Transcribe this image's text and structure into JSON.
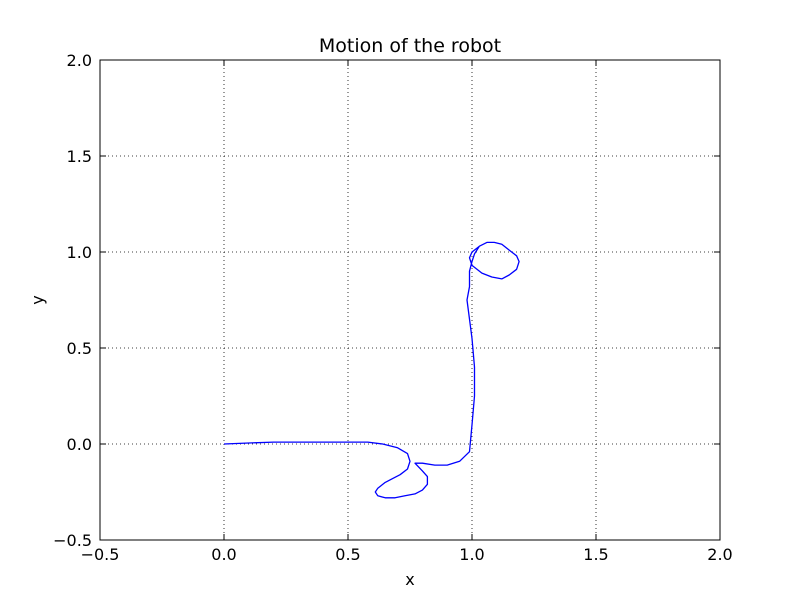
{
  "chart_data": {
    "type": "line",
    "title": "Motion of the robot",
    "xlabel": "x",
    "ylabel": "y",
    "xlim": [
      -0.5,
      2.0
    ],
    "ylim": [
      -0.5,
      2.0
    ],
    "xticks": [
      -0.5,
      0.0,
      0.5,
      1.0,
      1.5,
      2.0
    ],
    "yticks": [
      -0.5,
      0.0,
      0.5,
      1.0,
      1.5,
      2.0
    ],
    "xtick_labels": [
      "−0.5",
      "0.0",
      "0.5",
      "1.0",
      "1.5",
      "2.0"
    ],
    "ytick_labels": [
      "−0.5",
      "0.0",
      "0.5",
      "1.0",
      "1.5",
      "2.0"
    ],
    "grid": true,
    "grid_style": "dotted",
    "line_color": "#0000ff",
    "series": [
      {
        "x": [
          0.0,
          0.1,
          0.2,
          0.3,
          0.4,
          0.5,
          0.58,
          0.64,
          0.7,
          0.74,
          0.75,
          0.74,
          0.71,
          0.68,
          0.65,
          0.62,
          0.61,
          0.62,
          0.65,
          0.69,
          0.73,
          0.77,
          0.8,
          0.82,
          0.82,
          0.8,
          0.77,
          0.8,
          0.85,
          0.9,
          0.95,
          0.99,
          1.0,
          1.01,
          1.01,
          1.0,
          0.99,
          0.98,
          0.99,
          0.99,
          0.99,
          1.0,
          1.01,
          1.03,
          1.06,
          1.09,
          1.12,
          1.15,
          1.18,
          1.19,
          1.18,
          1.15,
          1.12,
          1.08,
          1.04,
          1.0,
          0.99,
          1.0,
          1.03
        ],
        "y": [
          0.0,
          0.005,
          0.01,
          0.01,
          0.01,
          0.01,
          0.01,
          0.0,
          -0.02,
          -0.05,
          -0.09,
          -0.13,
          -0.16,
          -0.18,
          -0.2,
          -0.23,
          -0.25,
          -0.27,
          -0.28,
          -0.28,
          -0.27,
          -0.26,
          -0.24,
          -0.21,
          -0.17,
          -0.14,
          -0.1,
          -0.1,
          -0.11,
          -0.11,
          -0.09,
          -0.04,
          0.1,
          0.25,
          0.4,
          0.55,
          0.65,
          0.75,
          0.82,
          0.86,
          0.9,
          0.95,
          0.99,
          1.03,
          1.05,
          1.05,
          1.04,
          1.01,
          0.98,
          0.95,
          0.91,
          0.88,
          0.86,
          0.87,
          0.89,
          0.93,
          0.97,
          1.0,
          1.03
        ]
      }
    ]
  }
}
